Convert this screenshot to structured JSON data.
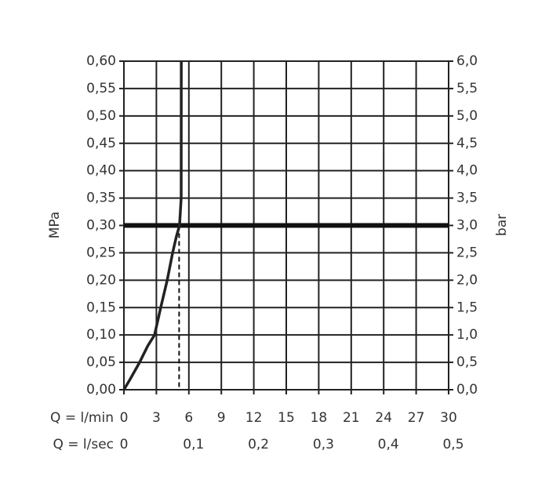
{
  "chart_data": {
    "type": "line",
    "y_label": "MPa",
    "y2_label": "bar",
    "x_label": "Q = l/min",
    "x2_label": "Q = l/sec",
    "xlim": [
      0,
      30
    ],
    "xticks": [
      0,
      3,
      6,
      9,
      12,
      15,
      18,
      21,
      24,
      27,
      30
    ],
    "x2lim": [
      0,
      0.5
    ],
    "x2ticks": [
      0,
      {
        "value": 0.1,
        "label": "0,1"
      },
      {
        "value": 0.2,
        "label": "0,2"
      },
      {
        "value": 0.3,
        "label": "0,3"
      },
      {
        "value": 0.4,
        "label": "0,4"
      },
      {
        "value": 0.5,
        "label": "0,5"
      }
    ],
    "ylim": [
      0,
      0.6
    ],
    "yticks": [
      {
        "value": 0,
        "label": "0,00"
      },
      {
        "value": 0.05,
        "label": "0,05"
      },
      {
        "value": 0.1,
        "label": "0,10"
      },
      {
        "value": 0.15,
        "label": "0,15"
      },
      {
        "value": 0.2,
        "label": "0,20"
      },
      {
        "value": 0.25,
        "label": "0,25"
      },
      {
        "value": 0.3,
        "label": "0,30"
      },
      {
        "value": 0.35,
        "label": "0,35"
      },
      {
        "value": 0.4,
        "label": "0,40"
      },
      {
        "value": 0.45,
        "label": "0,45"
      },
      {
        "value": 0.5,
        "label": "0,50"
      },
      {
        "value": 0.55,
        "label": "0,55"
      },
      {
        "value": 0.6,
        "label": "0,60"
      }
    ],
    "y2lim": [
      0,
      6
    ],
    "y2ticks": [
      {
        "value": 0,
        "label": "0,0"
      },
      {
        "value": 0.5,
        "label": "0,5"
      },
      {
        "value": 1,
        "label": "1,0"
      },
      {
        "value": 1.5,
        "label": "1,5"
      },
      {
        "value": 2,
        "label": "2,0"
      },
      {
        "value": 2.5,
        "label": "2,5"
      },
      {
        "value": 3,
        "label": "3,0"
      },
      {
        "value": 3.5,
        "label": "3,5"
      },
      {
        "value": 4,
        "label": "4,0"
      },
      {
        "value": 4.5,
        "label": "4,5"
      },
      {
        "value": 5,
        "label": "5,0"
      },
      {
        "value": 5.5,
        "label": "5,5"
      },
      {
        "value": 6,
        "label": "6,0"
      }
    ],
    "grid": true,
    "x": [
      0,
      0.6,
      1.45,
      2.2,
      2.83,
      3.4,
      4.0,
      4.5,
      4.85,
      5.14,
      5.29,
      5.3
    ],
    "series": [
      {
        "color": "#222222",
        "values": [
          0,
          0.02,
          0.05,
          0.08,
          0.1,
          0.15,
          0.2,
          0.25,
          0.28,
          0.3,
          0.35,
          0.6
        ]
      }
    ],
    "hline": 0.3,
    "vline": 5.1
  }
}
